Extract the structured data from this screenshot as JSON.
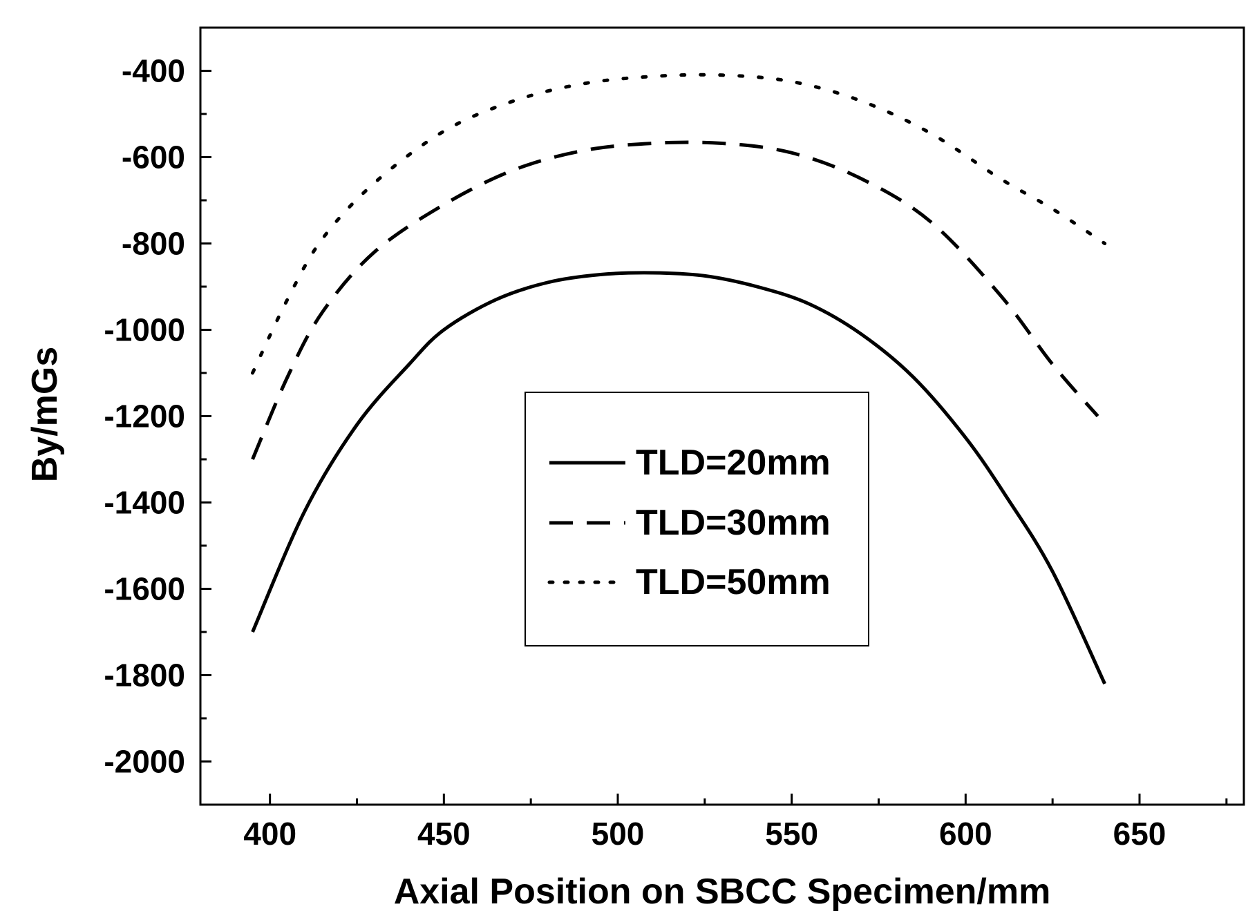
{
  "chart_data": {
    "type": "line",
    "xlabel": "Axial Position on SBCC Specimen/mm",
    "ylabel": "By/mGs",
    "xlim": [
      380,
      680
    ],
    "ylim": [
      -2100,
      -300
    ],
    "xticks": [
      400,
      450,
      500,
      550,
      600,
      650
    ],
    "yticks": [
      -400,
      -600,
      -800,
      -1000,
      -1200,
      -1400,
      -1600,
      -1800,
      -2000
    ],
    "grid": false,
    "legend_placement": "center",
    "series": [
      {
        "name": "TLD=20mm",
        "style": "solid",
        "x": [
          395,
          410,
          425,
          440,
          450,
          465,
          480,
          495,
          510,
          525,
          540,
          555,
          570,
          585,
          600,
          612,
          625,
          640
        ],
        "y": [
          -1700,
          -1420,
          -1220,
          -1080,
          -1000,
          -930,
          -890,
          -872,
          -868,
          -875,
          -900,
          -940,
          -1010,
          -1110,
          -1250,
          -1390,
          -1560,
          -1820
        ]
      },
      {
        "name": "TLD=30mm",
        "style": "dashed",
        "x": [
          395,
          405,
          415,
          430,
          450,
          470,
          490,
          510,
          530,
          550,
          570,
          590,
          610,
          625,
          638
        ],
        "y": [
          -1300,
          -1110,
          -960,
          -820,
          -710,
          -630,
          -585,
          -568,
          -568,
          -590,
          -650,
          -750,
          -920,
          -1080,
          -1200
        ]
      },
      {
        "name": "TLD=50mm",
        "style": "dotted",
        "x": [
          395,
          405,
          415,
          430,
          450,
          470,
          490,
          510,
          530,
          550,
          570,
          590,
          610,
          625,
          640
        ],
        "y": [
          -1100,
          -930,
          -790,
          -660,
          -540,
          -470,
          -430,
          -413,
          -410,
          -425,
          -470,
          -545,
          -650,
          -720,
          -800
        ]
      }
    ]
  }
}
